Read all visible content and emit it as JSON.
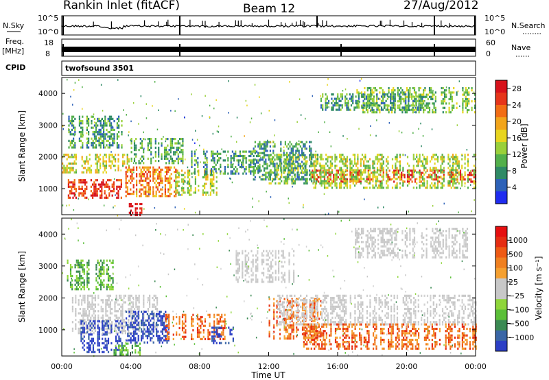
{
  "header": {
    "station": "Rankin Inlet (fitACF)",
    "beam": "Beam 12",
    "date": "27/Aug/2012"
  },
  "aux": {
    "nsky_label": "N.Sky",
    "nsearch_label": "N.Search",
    "noise_left_top": "10^5",
    "noise_left_bot": "10^0",
    "noise_right_top": "10^5",
    "noise_right_bot": "10^0",
    "freq_label": "Freq.",
    "freq_unit": "[MHz]",
    "freq_top": "18",
    "freq_bot": "8",
    "nave_label": "Nave",
    "nave_top": "60",
    "nave_bot": "0",
    "cpid_label": "CPID",
    "cpid_value": "twofsound 3501"
  },
  "x_axis": {
    "label": "Time UT",
    "ticks": [
      "00:00",
      "04:00",
      "08:00",
      "12:00",
      "16:00",
      "20:00",
      "00:00"
    ]
  },
  "chart_data": [
    {
      "type": "heatmap",
      "panel": "power",
      "ylabel": "Slant Range [km]",
      "yticks": [
        "1000",
        "2000",
        "3000",
        "4000"
      ],
      "ylim": [
        180,
        4500
      ],
      "xlim": [
        0,
        24
      ],
      "colorbar": {
        "label": "Power [dB]",
        "ticks": [
          "4",
          "8",
          "12",
          "16",
          "20",
          "24",
          "28"
        ],
        "range": [
          0,
          30
        ],
        "colors": [
          "#1f2cf0",
          "#2d62b8",
          "#2f8a66",
          "#53b04b",
          "#9ad03a",
          "#e8d51f",
          "#f2a51b",
          "#f26d14",
          "#e6351a",
          "#d8121b"
        ]
      },
      "regions": [
        {
          "t": [
            0.0,
            3.9
          ],
          "r": [
            1500,
            2100
          ],
          "level": 16
        },
        {
          "t": [
            0.0,
            3.5
          ],
          "r": [
            700,
            1300
          ],
          "level": 26
        },
        {
          "t": [
            0.2,
            3.5
          ],
          "r": [
            2300,
            3300
          ],
          "level": 9
        },
        {
          "t": [
            3.8,
            4.6
          ],
          "r": [
            200,
            550
          ],
          "level": 29
        },
        {
          "t": [
            3.6,
            6.6
          ],
          "r": [
            800,
            1700
          ],
          "level": 22
        },
        {
          "t": [
            4.0,
            7.0
          ],
          "r": [
            1800,
            2600
          ],
          "level": 10
        },
        {
          "t": [
            6.4,
            9.2
          ],
          "r": [
            800,
            1600
          ],
          "level": 15
        },
        {
          "t": [
            7.5,
            11.5
          ],
          "r": [
            1500,
            2200
          ],
          "level": 9
        },
        {
          "t": [
            11.0,
            14.5
          ],
          "r": [
            1300,
            2500
          ],
          "level": 8
        },
        {
          "t": [
            12.0,
            15.0
          ],
          "r": [
            1200,
            2100
          ],
          "level": 12
        },
        {
          "t": [
            14.5,
            24.0
          ],
          "r": [
            1250,
            1600
          ],
          "level": 27
        },
        {
          "t": [
            14.5,
            24.0
          ],
          "r": [
            1000,
            2100
          ],
          "level": 14
        },
        {
          "t": [
            17.0,
            24.0
          ],
          "r": [
            3400,
            4200
          ],
          "level": 12
        },
        {
          "t": [
            15.0,
            21.0
          ],
          "r": [
            3500,
            4000
          ],
          "level": 9
        }
      ]
    },
    {
      "type": "heatmap",
      "panel": "velocity",
      "ylabel": "Slant Range [km]",
      "yticks": [
        "1000",
        "2000",
        "3000",
        "4000"
      ],
      "ylim": [
        180,
        4500
      ],
      "xlim": [
        0,
        24
      ],
      "colorbar": {
        "label": "Velocity [m s⁻¹]",
        "ticks": [
          "1000",
          "500",
          "100",
          "25",
          "−25",
          "−100",
          "−500",
          "−1000"
        ],
        "colors": [
          "#2c3fc6",
          "#3a66a6",
          "#3b8a53",
          "#5bbf38",
          "#8fd63a",
          "#c8c8c8",
          "#c8c8c8",
          "#f5a030",
          "#f08020",
          "#ee5a14",
          "#e62d12",
          "#e60f10"
        ]
      },
      "regions": [
        {
          "t": [
            0.5,
            5.5
          ],
          "r": [
            900,
            2100
          ],
          "cat": "gray"
        },
        {
          "t": [
            1.0,
            3.5
          ],
          "r": [
            300,
            1300
          ],
          "cat": "blue"
        },
        {
          "t": [
            3.7,
            6.3
          ],
          "r": [
            600,
            1600
          ],
          "cat": "blue"
        },
        {
          "t": [
            3.0,
            4.5
          ],
          "r": [
            200,
            600
          ],
          "cat": "green"
        },
        {
          "t": [
            6.0,
            9.5
          ],
          "r": [
            700,
            1500
          ],
          "cat": "orange"
        },
        {
          "t": [
            8.5,
            10.0
          ],
          "r": [
            600,
            1100
          ],
          "cat": "blue"
        },
        {
          "t": [
            10.0,
            13.5
          ],
          "r": [
            2500,
            3500
          ],
          "cat": "gray"
        },
        {
          "t": [
            12.0,
            15.0
          ],
          "r": [
            700,
            2000
          ],
          "cat": "orange"
        },
        {
          "t": [
            12.5,
            24.0
          ],
          "r": [
            1200,
            2100
          ],
          "cat": "gray"
        },
        {
          "t": [
            14.0,
            24.0
          ],
          "r": [
            400,
            1200
          ],
          "cat": "orange"
        },
        {
          "t": [
            17.0,
            23.5
          ],
          "r": [
            3300,
            4200
          ],
          "cat": "gray"
        },
        {
          "t": [
            0.3,
            3.0
          ],
          "r": [
            2300,
            3200
          ],
          "cat": "green"
        }
      ]
    }
  ]
}
